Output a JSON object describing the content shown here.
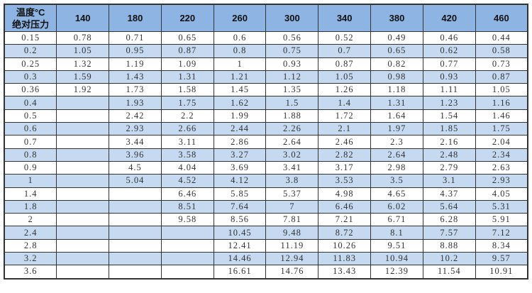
{
  "table": {
    "corner_label_line1": "温度°C",
    "corner_label_line2": "绝对压力",
    "columns": [
      "140",
      "180",
      "220",
      "260",
      "300",
      "340",
      "380",
      "420",
      "460"
    ],
    "header_color": "#8db4e2",
    "alt_row_color": "#c5d9f1",
    "rows": [
      [
        "0.15",
        "0.78",
        "0.71",
        "0.65",
        "0.6",
        "0.56",
        "0.52",
        "0.49",
        "0.46",
        "0.44"
      ],
      [
        "0.2",
        "1.05",
        "0.95",
        "0.87",
        "0.8",
        "0.75",
        "0.7",
        "0.65",
        "0.62",
        "0.58"
      ],
      [
        "0.25",
        "1.32",
        "1.19",
        "1.09",
        "1",
        "0.93",
        "0.87",
        "0.82",
        "0.77",
        "0.73"
      ],
      [
        "0.3",
        "1.59",
        "1.43",
        "1.31",
        "1.21",
        "1.12",
        "1.05",
        "0.98",
        "0.93",
        "0.87"
      ],
      [
        "0.36",
        "1.92",
        "1.73",
        "1.58",
        "1.45",
        "1.35",
        "1.26",
        "1.18",
        "1.11",
        "1.05"
      ],
      [
        "0.4",
        "",
        "1.93",
        "1.75",
        "1.62",
        "1.5",
        "1.4",
        "1.31",
        "1.23",
        "1.16"
      ],
      [
        "0.5",
        "",
        "2.42",
        "2.2",
        "1.99",
        "1.88",
        "1.72",
        "1.64",
        "1.54",
        "1.46"
      ],
      [
        "0.6",
        "",
        "2.93",
        "2.66",
        "2.44",
        "2.26",
        "2.1",
        "1.97",
        "1.85",
        "1.75"
      ],
      [
        "0.7",
        "",
        "3.44",
        "3.11",
        "2.86",
        "2.64",
        "2.46",
        "2.3",
        "2.16",
        "2.04"
      ],
      [
        "0.8",
        "",
        "3.96",
        "3.58",
        "3.27",
        "3.02",
        "2.82",
        "2.64",
        "2.48",
        "2.34"
      ],
      [
        "0.9",
        "",
        "4.5",
        "4.04",
        "3.69",
        "3.41",
        "3.17",
        "2.98",
        "2.79",
        "2.63"
      ],
      [
        "1",
        "",
        "5.04",
        "4.52",
        "4.12",
        "3.8",
        "3.53",
        "3.5",
        "3.1",
        "2.93"
      ],
      [
        "1.4",
        "",
        "",
        "6.46",
        "5.85",
        "5.37",
        "4.98",
        "4.65",
        "4.37",
        "4.05"
      ],
      [
        "1.8",
        "",
        "",
        "8.51",
        "7.64",
        "7",
        "6.46",
        "6.02",
        "5.64",
        "5.31"
      ],
      [
        "2",
        "",
        "",
        "9.58",
        "8.56",
        "7.81",
        "7.21",
        "6.71",
        "6.28",
        "5.91"
      ],
      [
        "2.4",
        "",
        "",
        "",
        "10.45",
        "9.48",
        "8.72",
        "8.1",
        "7.57",
        "7.12"
      ],
      [
        "2.8",
        "",
        "",
        "",
        "12.41",
        "11.19",
        "10.26",
        "9.51",
        "8.88",
        "8.34"
      ],
      [
        "3.2",
        "",
        "",
        "",
        "14.46",
        "12.94",
        "11.83",
        "10.94",
        "10.2",
        "9.57"
      ],
      [
        "3.6",
        "",
        "",
        "",
        "16.61",
        "14.76",
        "13.43",
        "12.39",
        "11.54",
        "10.91"
      ]
    ]
  }
}
